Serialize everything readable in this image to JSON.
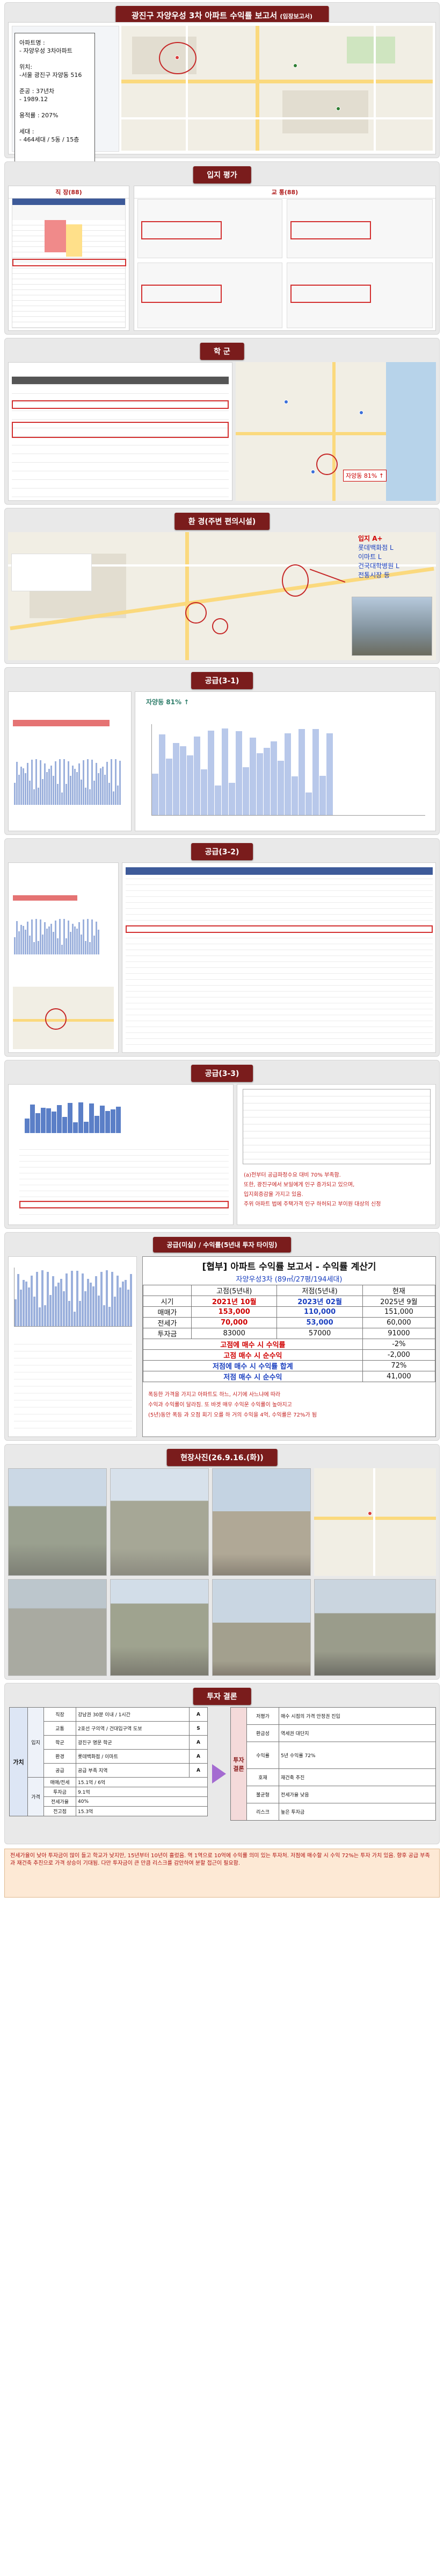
{
  "report_title": "광진구 자양우성 3차 아파트 수익률 보고서",
  "report_title_suffix": "(임장보고서)",
  "apartment_info": {
    "name_label": "아파트명 :",
    "name_value": "- 자양우성 3차아파트",
    "location_label": "위치:",
    "location_value": "-서울 광진구 자양동 516",
    "built_label": "준공 : 37년차",
    "built_value": "- 1989.12",
    "floor_ratio": "용적률 : 207%",
    "households_label": "세대 :",
    "households_value": "- 464세대 / 5동 / 15층"
  },
  "sections": {
    "location": "입지 평가",
    "school": "학 군",
    "amenities": "환 경(주변 편의시설)",
    "supply1": "공급(3-1)",
    "supply2": "공급(3-2)",
    "supply3": "공급(3-3)",
    "yield": "공급(미실) / 수익률(5년내 투자 타이밍)",
    "photos": "현장사진(26.9.16.(화))",
    "conclusion": "투자 결론"
  },
  "location_eval": {
    "job_label": "직 장(88)",
    "transport_label": "교 통(88)"
  },
  "school_map_label": "자양동 81% ↑",
  "amenity_label": {
    "title": "입지 A+",
    "lines": [
      "롯데백화점 L",
      "이마트 L",
      "건국대학병원 L",
      "전통시장 등"
    ]
  },
  "supply1_chart_title": "자양동 81% ↑",
  "yield_table": {
    "title": "[협부] 아파트 수익률 보고서 - 수익률 계산기",
    "subtitle": "자양우성3차 (89㎡/27평/194세대)",
    "headers": [
      "",
      "고점(5년내)",
      "저점(5년내)",
      "현재"
    ],
    "rows": [
      {
        "label": "시기",
        "values": [
          "2021년 10월",
          "2023년 02월",
          "2025년 9월"
        ]
      },
      {
        "label": "매매가",
        "values": [
          "153,000",
          "110,000",
          "151,000"
        ]
      },
      {
        "label": "전세가",
        "values": [
          "70,000",
          "53,000",
          "60,000"
        ]
      },
      {
        "label": "투자금",
        "values": [
          "83000",
          "57000",
          "91000"
        ]
      }
    ],
    "result_rows": [
      {
        "label": "고점에 매수 시 수익률",
        "value": "-2%"
      },
      {
        "label": "고점 매수 시 순수익",
        "value": "-2,000"
      },
      {
        "label": "저점에 매수 시 수익률 합계",
        "value": "72%"
      },
      {
        "label": "저점 매수 시 순수익",
        "value": "41,000"
      }
    ],
    "notes": [
      "폭등한 가격을 가지고 아파트도 하느, 시기에 사느냐에 따라",
      "수익과 수익률이 달라짐. 또 바겟 매우 수익운 수익률이 높아지고",
      "(5년)동안 폭등 과 오점 회기 오를 하 거의 수익을 4억, 수익률은 72%가 됨"
    ]
  },
  "supply3_notes": [
    "(a)전부터 공급파정수요 대비 70% 부족함.",
    "또한, 광진구에서 보일에게 인구 증가되고 있으며,",
    "입지회증감율 가지고 있음.",
    "주위 아파트 법에 주택가격 인구 하허되고 부이원 대상의 신정"
  ],
  "conclusion_table": {
    "left_title": "가치",
    "left_rows": [
      {
        "group": "입지",
        "item": "직장",
        "desc": "강남권 30분 이내 / 1시간",
        "score": "A"
      },
      {
        "group": "입지",
        "item": "교통",
        "desc": "2호선 구의역 / 건대입구역 도보",
        "score": "S"
      },
      {
        "group": "입지",
        "item": "학군",
        "desc": "광진구 명문 학군",
        "score": "A"
      },
      {
        "group": "입지",
        "item": "환경",
        "desc": "롯데백화점 / 이마트",
        "score": "A"
      },
      {
        "group": "입지",
        "item": "공급",
        "desc": "공급 부족 지역",
        "score": "A"
      },
      {
        "group": "가격",
        "item": "매매/전세",
        "desc": "15.1억 / 6억",
        "score": ""
      },
      {
        "group": "가격",
        "item": "투자금",
        "desc": "9.1억",
        "score": ""
      },
      {
        "group": "가격",
        "item": "전세가율",
        "desc": "40%",
        "score": ""
      },
      {
        "group": "가격",
        "item": "전고점",
        "desc": "15.3억",
        "score": ""
      }
    ],
    "right_title": "투자결론",
    "right_rows": [
      {
        "item": "저평가",
        "desc": "매수 시점의 가격 안정권 진입"
      },
      {
        "item": "환금성",
        "desc": "역세권 대단지"
      },
      {
        "item": "수익률",
        "desc": "5년 수익률 72%"
      },
      {
        "item": "호재",
        "desc": "재건축 추진"
      },
      {
        "item": "불균형",
        "desc": "전세가율 낮음"
      },
      {
        "item": "리스크",
        "desc": "높은 투자금"
      }
    ],
    "summary": "전세가율이 낮아 투자금이 많이 들고 학교가 낮지만, 15년부터 10년이 흘렀음. 역 1역으로 10억에 수익률 의미 있는 투자처. 저점에 매수할 시 수익 72%는 투자 가치 있음. 향후 공급 부족과 재건축 추진으로 가격 상승이 기대됨. 다만 투자금이 큰 만큼 리스크를 감안하여 분할 접근이 필요함."
  },
  "colors": {
    "banner": "#7a1c1c",
    "accent_red": "#d00000",
    "accent_blue": "#1a3fbf"
  }
}
